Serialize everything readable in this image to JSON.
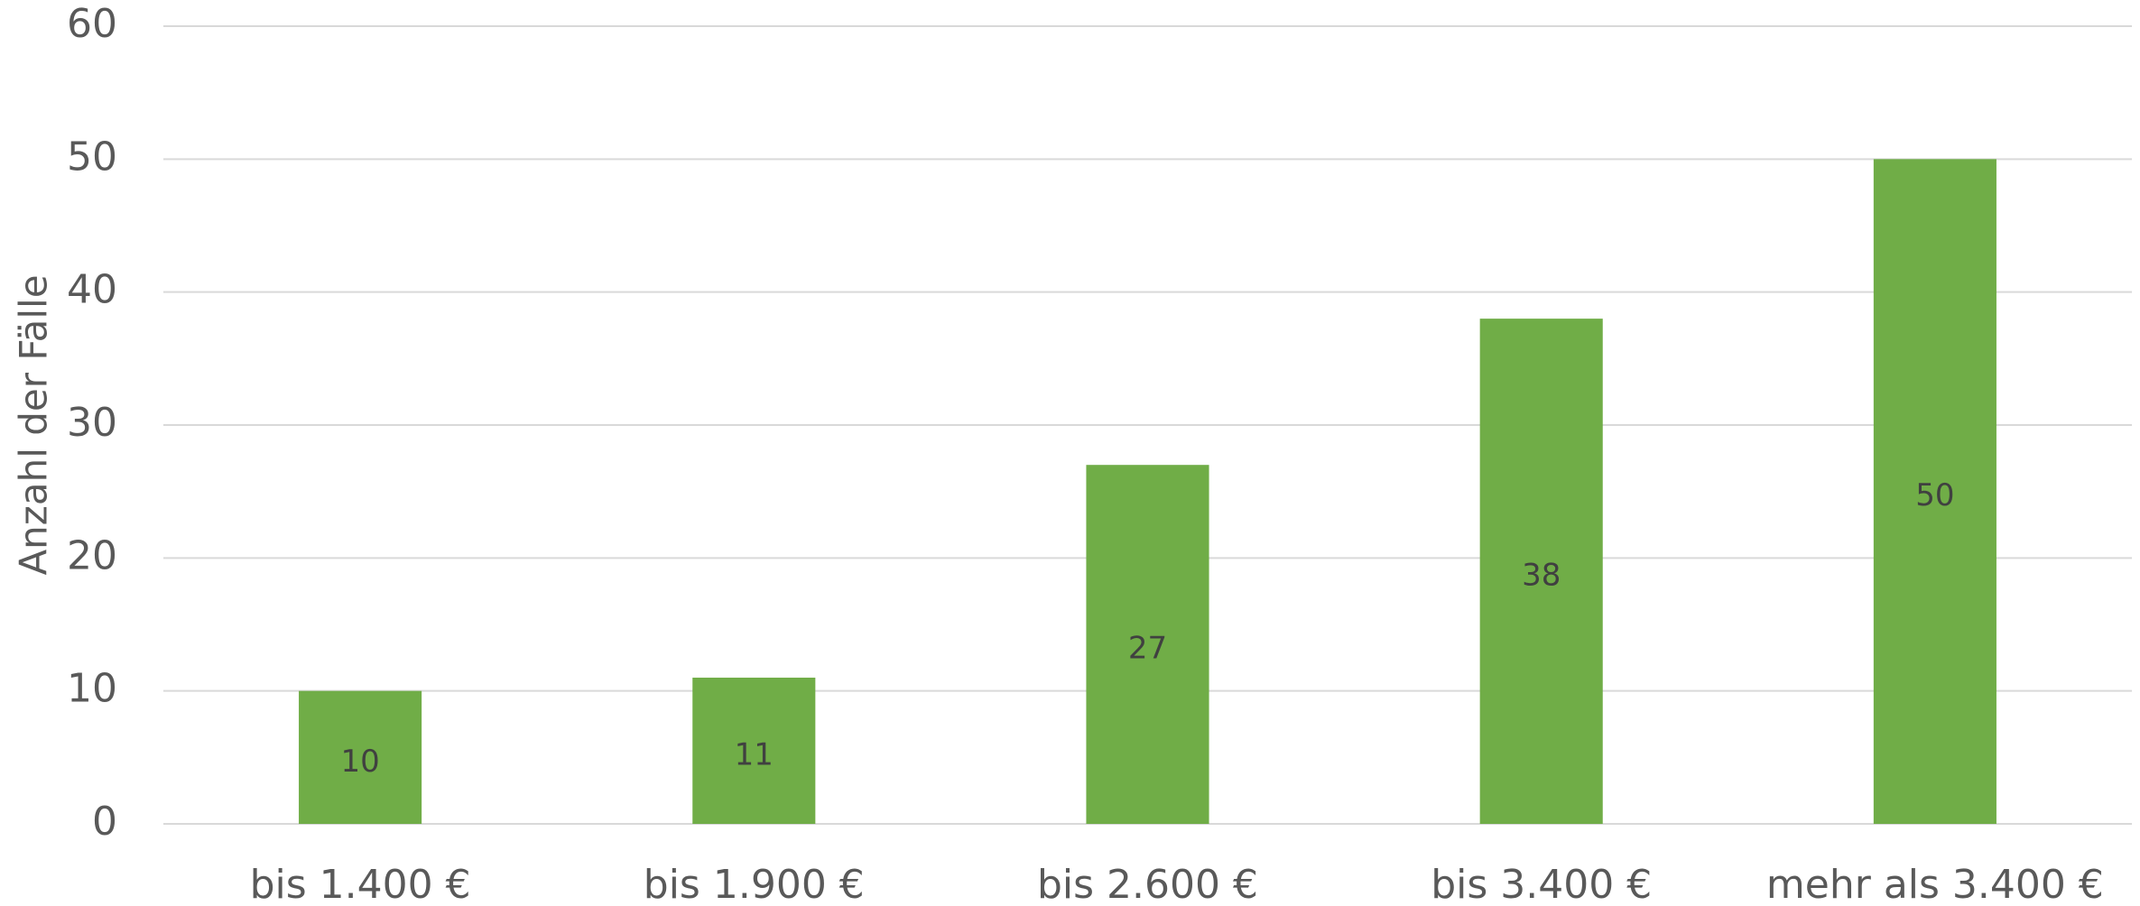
{
  "chart_data": {
    "type": "bar",
    "y_label": "Anzahl der Fälle",
    "categories": [
      "bis 1.400 €",
      "bis 1.900 €",
      "bis 2.600 €",
      "bis 3.400 €",
      "mehr als 3.400 €"
    ],
    "values": [
      10,
      11,
      27,
      38,
      50
    ],
    "color": "#70ad47",
    "ylim": [
      0,
      60
    ],
    "yticks": [
      0,
      10,
      20,
      30,
      40,
      50,
      60
    ],
    "grid": true,
    "data_labels": true
  }
}
